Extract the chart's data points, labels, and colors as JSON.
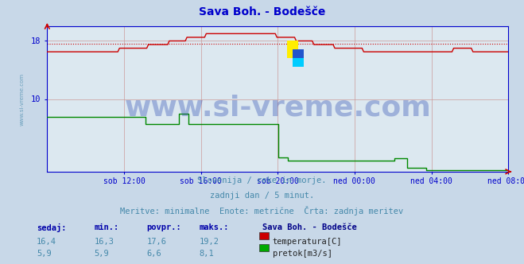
{
  "title": "Sava Boh. - Bodešče",
  "title_color": "#0000cc",
  "title_fontsize": 10,
  "bg_color": "#c8d8e8",
  "plot_bg_color": "#dce8f0",
  "grid_color": "#cc9999",
  "axis_color": "#0000cc",
  "x_tick_labels": [
    "sob 12:00",
    "sob 16:00",
    "sob 20:00",
    "ned 00:00",
    "ned 04:00",
    "ned 08:00"
  ],
  "ylim_min": 0,
  "ylim_max": 20,
  "yticks": [
    10,
    18
  ],
  "subtitle_lines": [
    "Slovenija / reke in morje.",
    "zadnji dan / 5 minut.",
    "Meritve: minimalne  Enote: metrične  Črta: zadnja meritev"
  ],
  "subtitle_color": "#4488aa",
  "subtitle_fontsize": 7.5,
  "watermark": "www.si-vreme.com",
  "watermark_color": "#1133aa",
  "watermark_alpha": 0.3,
  "watermark_fontsize": 26,
  "side_label": "www.si-vreme.com",
  "side_label_color": "#4488aa",
  "side_label_fontsize": 5,
  "legend_title": "Sava Boh. - Bodešče",
  "legend_title_color": "#000088",
  "legend_items": [
    {
      "label": "temperatura[C]",
      "color": "#cc0000"
    },
    {
      "label": "pretok[m3/s]",
      "color": "#00aa00"
    }
  ],
  "table_headers": [
    "sedaj:",
    "min.:",
    "povpr.:",
    "maks.:"
  ],
  "table_rows": [
    [
      "16,4",
      "16,3",
      "17,6",
      "19,2"
    ],
    [
      "5,9",
      "5,9",
      "6,6",
      "8,1"
    ]
  ],
  "table_header_color": "#0000aa",
  "table_value_color": "#4488aa",
  "temp_color": "#cc0000",
  "flow_color": "#008800",
  "avg_line_color": "#cc0000",
  "avg_temp": 17.6,
  "temp_min": 16.3,
  "temp_max": 19.2,
  "flow_min": 5.9,
  "flow_max": 8.1
}
